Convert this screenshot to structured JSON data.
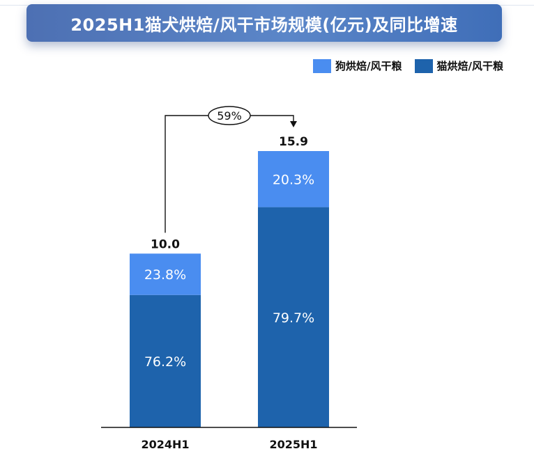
{
  "title": "2025H1猫犬烘焙/风干市场规模(亿元)及同比增速",
  "colors": {
    "dog": "#4a8df0",
    "cat": "#1e63ac",
    "banner": "#4d70b3",
    "axis": "#111111"
  },
  "chart_data": {
    "type": "bar",
    "stacked": true,
    "title": "2025H1猫犬烘焙/风干市场规模(亿元)及同比增速",
    "categories": [
      "2024H1",
      "2025H1"
    ],
    "totals": [
      10.0,
      15.9
    ],
    "total_labels": [
      "10.0",
      "15.9"
    ],
    "series": [
      {
        "name": "猫烘焙/风干粮",
        "key": "cat",
        "share_labels": [
          "76.2%",
          "79.7%"
        ],
        "shares": [
          76.2,
          79.7
        ]
      },
      {
        "name": "狗烘焙/风干粮",
        "key": "dog",
        "share_labels": [
          "23.8%",
          "20.3%"
        ],
        "shares": [
          23.8,
          20.3
        ]
      }
    ],
    "growth_label": "59%",
    "legend": [
      "狗烘焙/风干粮",
      "猫烘焙/风干粮"
    ],
    "legend_position": "top-right",
    "ylim": [
      0,
      15.9
    ],
    "xlabel": "",
    "ylabel": "",
    "grid": false
  }
}
